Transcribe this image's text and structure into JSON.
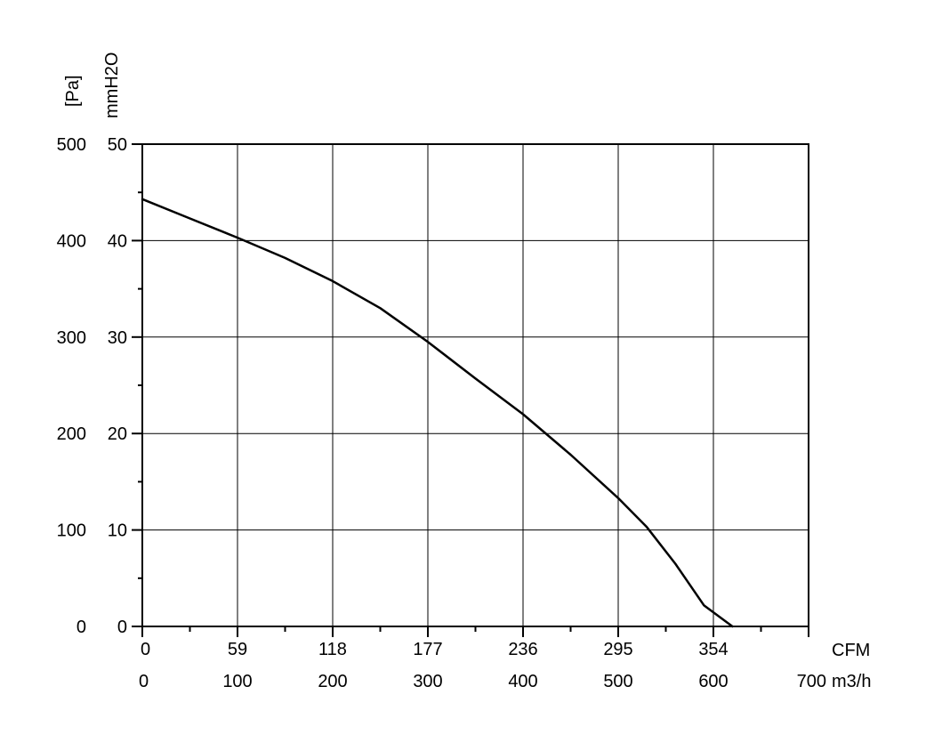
{
  "chart_data": {
    "type": "line",
    "y_axis_primary": {
      "unit_label": "[Pa]",
      "ticks": [
        "0",
        "100",
        "200",
        "300",
        "400",
        "500"
      ],
      "ylim": [
        0,
        500
      ]
    },
    "y_axis_secondary": {
      "unit_label": "mmH2O",
      "ticks": [
        "0",
        "10",
        "20",
        "30",
        "40",
        "50"
      ]
    },
    "x_axis_primary": {
      "unit_label": "CFM",
      "ticks": [
        "0",
        "59",
        "118",
        "177",
        "236",
        "295",
        "354"
      ]
    },
    "x_axis_secondary": {
      "unit_label": "m3/h",
      "ticks": [
        "0",
        "100",
        "200",
        "300",
        "400",
        "500",
        "600",
        "700"
      ],
      "xlim": [
        0,
        700
      ]
    },
    "grid": true,
    "series": [
      {
        "x": [
          0,
          50,
          100,
          150,
          200,
          250,
          300,
          350,
          400,
          450,
          500,
          530,
          560,
          590,
          620
        ],
        "y": [
          443,
          423,
          403,
          382,
          358,
          330,
          295,
          257,
          220,
          178,
          133,
          103,
          65,
          22,
          0
        ]
      }
    ]
  }
}
